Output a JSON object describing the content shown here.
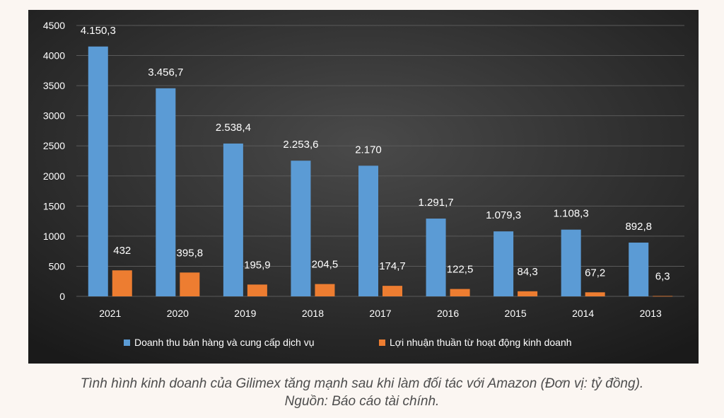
{
  "colors": {
    "revenue": "#5b9bd5",
    "profit": "#ed7d31",
    "gridline": "#5a5a5a",
    "text": "#ffffff",
    "background_inner": "#4a4a4a",
    "background_outer": "#1a1a1a"
  },
  "chart_data": {
    "type": "bar",
    "categories": [
      "2021",
      "2020",
      "2019",
      "2018",
      "2017",
      "2016",
      "2015",
      "2014",
      "2013"
    ],
    "ylim": [
      0,
      4500
    ],
    "yticks": [
      "0",
      "500",
      "1000",
      "1500",
      "2000",
      "2500",
      "3000",
      "3500",
      "4000",
      "4500"
    ],
    "grid": true,
    "legend_position": "bottom",
    "series": [
      {
        "name": "Doanh thu bán hàng và cung cấp dịch vụ",
        "values": [
          4150.3,
          3456.7,
          2538.4,
          2253.6,
          2170,
          1291.7,
          1079.3,
          1108.3,
          892.8
        ],
        "labels": [
          "4.150,3",
          "3.456,7",
          "2.538,4",
          "2.253,6",
          "2.170",
          "1.291,7",
          "1.079,3",
          "1.108,3",
          "892,8"
        ]
      },
      {
        "name": "Lợi nhuận thuần từ hoạt động kinh doanh",
        "values": [
          432,
          395.8,
          195.9,
          204.5,
          174.7,
          122.5,
          84.3,
          67.2,
          6.3
        ],
        "labels": [
          "432",
          "395,8",
          "195,9",
          "204,5",
          "174,7",
          "122,5",
          "84,3",
          "67,2",
          "6,3"
        ]
      }
    ]
  },
  "caption": {
    "line1": "Tình hình kinh doanh của Gilimex tăng mạnh sau khi làm đối tác với Amazon (Đơn vị: tỷ đồng).",
    "line2": "Nguồn: Báo cáo tài chính."
  }
}
